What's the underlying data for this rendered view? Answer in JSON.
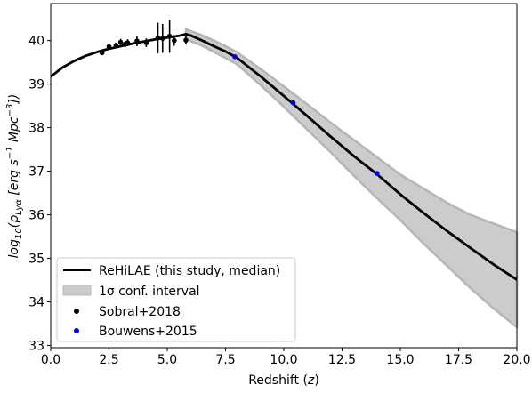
{
  "chart_data": {
    "type": "line",
    "xlabel": "Redshift (",
    "xlabel_var": "z",
    "xlabel_close": ")",
    "ylabel_prefix": "log",
    "ylabel_sub": "10",
    "ylabel_open": "(ρ",
    "ylabel_rho_sub": "Lyα",
    "ylabel_units": " [erg s",
    "ylabel_exp1": "−1",
    "ylabel_units2": " Mpc",
    "ylabel_exp2": "−3",
    "ylabel_close": "])",
    "xlim": [
      0,
      20
    ],
    "ylim": [
      32.95,
      40.85
    ],
    "x_ticks": [
      0.0,
      2.5,
      5.0,
      7.5,
      10.0,
      12.5,
      15.0,
      17.5,
      20.0
    ],
    "x_tick_labels": [
      "0.0",
      "2.5",
      "5.0",
      "7.5",
      "10.0",
      "12.5",
      "15.0",
      "17.5",
      "20.0"
    ],
    "y_ticks": [
      33,
      34,
      35,
      36,
      37,
      38,
      39,
      40
    ],
    "y_tick_labels": [
      "33",
      "34",
      "35",
      "36",
      "37",
      "38",
      "39",
      "40"
    ],
    "grid": false,
    "legend_position": "bottom-left",
    "series": [
      {
        "name": "ReHiLAE (this study, median)",
        "kind": "line",
        "color": "#000000",
        "x": [
          0.0,
          0.5,
          1.0,
          1.5,
          2.0,
          2.5,
          3.0,
          3.5,
          4.0,
          4.5,
          5.0,
          5.5,
          5.8,
          6.0,
          6.5,
          7.0,
          7.5,
          8.0,
          9.0,
          10.0,
          11.0,
          12.0,
          13.0,
          14.0,
          15.0,
          16.0,
          17.0,
          18.0,
          19.0,
          20.0
        ],
        "y": [
          39.17,
          39.38,
          39.53,
          39.65,
          39.74,
          39.81,
          39.87,
          39.93,
          39.98,
          40.03,
          40.07,
          40.11,
          40.15,
          40.12,
          40.0,
          39.87,
          39.75,
          39.6,
          39.18,
          38.73,
          38.27,
          37.8,
          37.35,
          36.93,
          36.47,
          36.04,
          35.63,
          35.24,
          34.86,
          34.51
        ]
      },
      {
        "name": "1σ conf. interval",
        "kind": "band",
        "color": "#cccccc",
        "x": [
          5.8,
          6.5,
          7.0,
          7.5,
          8.0,
          9.0,
          10.0,
          11.0,
          12.0,
          13.0,
          14.0,
          15.0,
          16.0,
          17.0,
          18.0,
          19.0,
          20.0
        ],
        "upper": [
          40.26,
          40.12,
          40.0,
          39.87,
          39.73,
          39.35,
          38.95,
          38.54,
          38.12,
          37.72,
          37.32,
          36.92,
          36.6,
          36.28,
          36.0,
          35.8,
          35.6
        ],
        "lower": [
          40.03,
          39.88,
          39.74,
          39.6,
          39.45,
          38.98,
          38.48,
          37.96,
          37.44,
          36.9,
          36.38,
          35.88,
          35.34,
          34.83,
          34.32,
          33.85,
          33.42
        ]
      },
      {
        "name": "Sobral+2018",
        "kind": "scatter",
        "color": "#000000",
        "points": [
          {
            "x": 2.2,
            "y": 39.72,
            "err": 0.05
          },
          {
            "x": 2.5,
            "y": 39.86,
            "err": 0.05
          },
          {
            "x": 2.8,
            "y": 39.89,
            "err": 0.06
          },
          {
            "x": 3.0,
            "y": 39.96,
            "err": 0.08
          },
          {
            "x": 3.2,
            "y": 39.92,
            "err": 0.07
          },
          {
            "x": 3.3,
            "y": 39.95,
            "err": 0.08
          },
          {
            "x": 3.7,
            "y": 39.99,
            "err": 0.12
          },
          {
            "x": 4.1,
            "y": 39.95,
            "err": 0.1
          },
          {
            "x": 4.6,
            "y": 40.06,
            "err": 0.35
          },
          {
            "x": 4.8,
            "y": 40.05,
            "err": 0.33
          },
          {
            "x": 5.1,
            "y": 40.1,
            "err": 0.38
          },
          {
            "x": 5.3,
            "y": 40.0,
            "err": 0.12
          },
          {
            "x": 5.8,
            "y": 40.01,
            "err": 0.1
          }
        ]
      },
      {
        "name": "Bouwens+2015",
        "kind": "scatter",
        "color": "#0000ee",
        "points": [
          {
            "x": 7.9,
            "y": 39.63
          },
          {
            "x": 10.4,
            "y": 38.57
          },
          {
            "x": 14.0,
            "y": 36.95
          }
        ]
      }
    ]
  }
}
